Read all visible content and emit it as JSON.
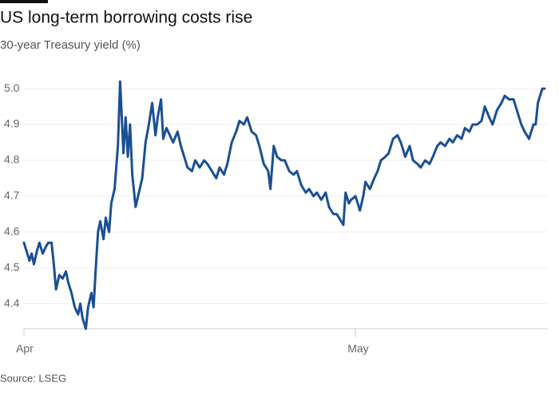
{
  "chart_data": {
    "type": "line",
    "title": "US long-term borrowing costs rise",
    "subtitle": "30-year Treasury yield (%)",
    "source": "Source: LSEG",
    "xlim": [
      0,
      47.4
    ],
    "xticks": [
      {
        "value": 0,
        "label": "Apr"
      },
      {
        "value": 30,
        "label": "May"
      }
    ],
    "ylim": [
      4.33,
      5.03
    ],
    "yticks": [
      4.4,
      4.5,
      4.6,
      4.7,
      4.8,
      4.9,
      {
        "value": 5,
        "label": "5.0"
      }
    ],
    "grid": true,
    "series": [
      {
        "color": "#1a4f93",
        "x": [
          0,
          0.2,
          0.5,
          0.7,
          0.9,
          1.2,
          1.4,
          1.7,
          2.0,
          2.2,
          2.5,
          2.7,
          2.9,
          3.2,
          3.5,
          3.8,
          4.0,
          4.3,
          4.6,
          4.9,
          5.1,
          5.3,
          5.6,
          5.8,
          6.1,
          6.3,
          6.5,
          6.7,
          6.9,
          7.2,
          7.4,
          7.7,
          7.9,
          8.2,
          8.5,
          8.7,
          9.0,
          9.2,
          9.4,
          9.6,
          9.8,
          10.1,
          10.4,
          10.7,
          11.0,
          11.3,
          11.6,
          11.9,
          12.1,
          12.4,
          12.6,
          12.9,
          13.2,
          13.5,
          13.9,
          14.2,
          14.5,
          14.8,
          15.2,
          15.5,
          15.9,
          16.3,
          16.6,
          17.0,
          17.4,
          17.7,
          18.1,
          18.4,
          18.8,
          19.2,
          19.5,
          19.9,
          20.2,
          20.6,
          21.0,
          21.3,
          21.7,
          22.1,
          22.3,
          22.6,
          22.9,
          23.3,
          23.6,
          24.0,
          24.4,
          24.7,
          25.1,
          25.5,
          25.8,
          26.2,
          26.5,
          26.9,
          27.3,
          27.6,
          28.0,
          28.3,
          28.7,
          28.9,
          29.1,
          29.4,
          29.6,
          30.0,
          30.4,
          30.7,
          30.9,
          31.3,
          31.7,
          32.0,
          32.3,
          32.7,
          33.0,
          33.4,
          33.8,
          34.1,
          34.5,
          34.9,
          35.2,
          35.6,
          35.9,
          36.3,
          36.7,
          37.0,
          37.4,
          37.7,
          38.1,
          38.5,
          38.8,
          39.2,
          39.6,
          39.9,
          40.3,
          40.6,
          41.0,
          41.4,
          41.7,
          42.1,
          42.4,
          42.8,
          43.2,
          43.5,
          43.9,
          44.3,
          44.6,
          45.0,
          45.3,
          45.7,
          46.1,
          46.3,
          46.5,
          46.7,
          46.9,
          47.1
        ],
        "values": [
          4.57,
          4.55,
          4.52,
          4.54,
          4.51,
          4.55,
          4.57,
          4.54,
          4.56,
          4.57,
          4.57,
          4.51,
          4.44,
          4.48,
          4.47,
          4.49,
          4.46,
          4.43,
          4.39,
          4.37,
          4.4,
          4.36,
          4.33,
          4.39,
          4.43,
          4.39,
          4.5,
          4.6,
          4.63,
          4.58,
          4.64,
          4.6,
          4.68,
          4.72,
          4.84,
          5.02,
          4.82,
          4.92,
          4.81,
          4.9,
          4.76,
          4.67,
          4.71,
          4.75,
          4.85,
          4.9,
          4.96,
          4.87,
          4.92,
          4.97,
          4.86,
          4.89,
          4.87,
          4.85,
          4.88,
          4.84,
          4.81,
          4.78,
          4.77,
          4.8,
          4.78,
          4.8,
          4.79,
          4.77,
          4.75,
          4.78,
          4.76,
          4.79,
          4.85,
          4.88,
          4.91,
          4.9,
          4.92,
          4.88,
          4.87,
          4.84,
          4.79,
          4.77,
          4.72,
          4.84,
          4.81,
          4.8,
          4.8,
          4.77,
          4.76,
          4.77,
          4.73,
          4.71,
          4.72,
          4.7,
          4.71,
          4.69,
          4.71,
          4.67,
          4.65,
          4.65,
          4.63,
          4.62,
          4.71,
          4.68,
          4.69,
          4.7,
          4.66,
          4.7,
          4.74,
          4.72,
          4.75,
          4.77,
          4.8,
          4.81,
          4.82,
          4.86,
          4.87,
          4.85,
          4.81,
          4.84,
          4.8,
          4.79,
          4.78,
          4.8,
          4.79,
          4.81,
          4.84,
          4.85,
          4.84,
          4.86,
          4.85,
          4.87,
          4.86,
          4.89,
          4.88,
          4.9,
          4.9,
          4.91,
          4.95,
          4.92,
          4.9,
          4.94,
          4.96,
          4.98,
          4.97,
          4.97,
          4.94,
          4.9,
          4.88,
          4.86,
          4.9,
          4.9,
          4.96,
          4.98,
          5.0,
          5.0
        ]
      }
    ]
  }
}
